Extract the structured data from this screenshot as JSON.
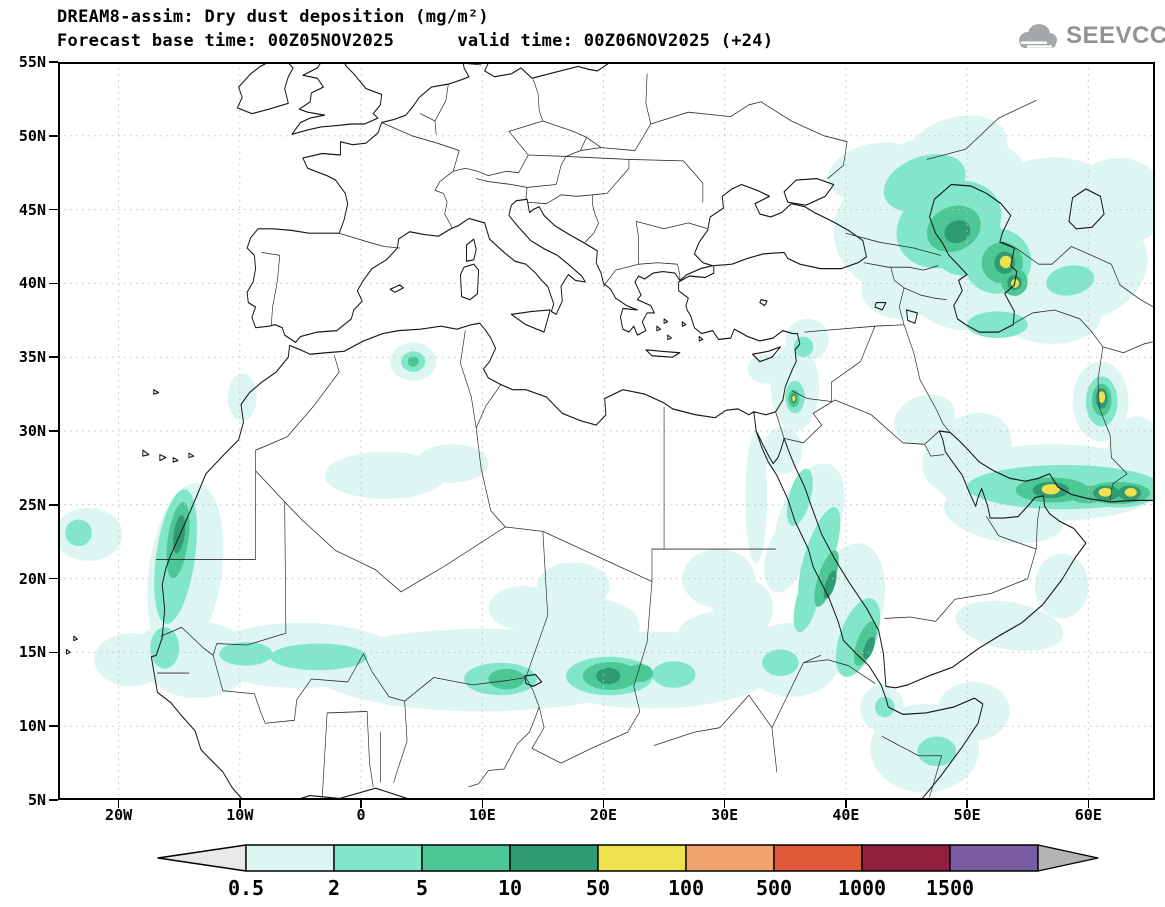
{
  "header": {
    "line1": "DREAM8-assim: Dry dust deposition (mg/m²)",
    "line2": "Forecast base time: 00Z05NOV2025      valid time: 00Z06NOV2025 (+24)",
    "logo_text": "SEEVCCC"
  },
  "map": {
    "lon_min": -25,
    "lon_max": 65.5,
    "lat_min": 5,
    "lat_max": 55,
    "x_ticks": [
      {
        "lon": -20,
        "label": "20W"
      },
      {
        "lon": -10,
        "label": "10W"
      },
      {
        "lon": 0,
        "label": "0"
      },
      {
        "lon": 10,
        "label": "10E"
      },
      {
        "lon": 20,
        "label": "20E"
      },
      {
        "lon": 30,
        "label": "30E"
      },
      {
        "lon": 40,
        "label": "40E"
      },
      {
        "lon": 50,
        "label": "50E"
      },
      {
        "lon": 60,
        "label": "60E"
      }
    ],
    "y_ticks": [
      {
        "lat": 55,
        "label": "55N"
      },
      {
        "lat": 50,
        "label": "50N"
      },
      {
        "lat": 45,
        "label": "45N"
      },
      {
        "lat": 40,
        "label": "40N"
      },
      {
        "lat": 35,
        "label": "35N"
      },
      {
        "lat": 30,
        "label": "30N"
      },
      {
        "lat": 25,
        "label": "25N"
      },
      {
        "lat": 20,
        "label": "20N"
      },
      {
        "lat": 15,
        "label": "15N"
      },
      {
        "lat": 10,
        "label": "10N"
      },
      {
        "lat": 5,
        "label": "5N"
      }
    ]
  },
  "chart_data": {
    "type": "filled-contour-map",
    "title": "DREAM8-assim: Dry dust deposition (mg/m²)",
    "model": "DREAM8-assim",
    "variable": "Dry dust deposition",
    "units": "mg/m²",
    "forecast_base_time": "00Z05NOV2025",
    "valid_time": "00Z06NOV2025",
    "lead_hours": 24,
    "lon_range": [
      -25,
      65.5
    ],
    "lat_range": [
      5,
      55
    ],
    "grid_spacing_deg": {
      "lon": 10,
      "lat": 5
    },
    "levels": [
      0.5,
      2,
      5,
      10,
      50,
      100,
      500,
      1000,
      1500
    ],
    "level_labels": [
      "0.5",
      "2",
      "5",
      "10",
      "50",
      "100",
      "500",
      "1000",
      "1500"
    ],
    "bin_colors": [
      "#ddf6f1",
      "#82e7c8",
      "#4cc795",
      "#2f9b73",
      "#efe24e",
      "#f1a46f",
      "#e05a39",
      "#8f1f3c",
      "#7a5ca3"
    ],
    "arrow_left_color": "#e8e8e8",
    "arrow_right_color": "#b3b3b3",
    "colorbar_position": "bottom",
    "regions_format": [
      "level_mg_m2",
      "lon_deg",
      "lat_deg",
      "rx_deg",
      "ry_deg",
      "rot_deg"
    ],
    "regions": [
      [
        0.5,
        47.5,
        45.5,
        8,
        4.5,
        -15
      ],
      [
        0.5,
        51,
        42,
        7,
        5,
        -30
      ],
      [
        0.5,
        56.5,
        44.5,
        6.5,
        4,
        -10
      ],
      [
        0.5,
        44,
        43.5,
        5,
        4,
        0
      ],
      [
        0.5,
        44.5,
        39.5,
        3.2,
        1.9,
        0
      ],
      [
        0.5,
        59.5,
        41,
        5.5,
        3.5,
        -20
      ],
      [
        0.5,
        62.5,
        45.5,
        4,
        3,
        0
      ],
      [
        0.5,
        49,
        48.8,
        4.5,
        2.4,
        -20
      ],
      [
        0.5,
        42.5,
        47.5,
        4,
        2,
        -10
      ],
      [
        0.5,
        57,
        37.6,
        4,
        1.7,
        0
      ],
      [
        0.5,
        57,
        26.5,
        9.5,
        2.6,
        0
      ],
      [
        0.5,
        50,
        28.5,
        4,
        2.4,
        -35
      ],
      [
        0.5,
        53,
        24.3,
        5,
        1.8,
        10
      ],
      [
        0.5,
        64,
        28,
        2.5,
        3,
        0
      ],
      [
        0.5,
        61,
        32,
        2.3,
        2.7,
        0
      ],
      [
        0.5,
        46.5,
        30.8,
        2.6,
        1.6,
        -20
      ],
      [
        0.5,
        35.8,
        33,
        2,
        3,
        0
      ],
      [
        0.5,
        36.8,
        36.2,
        1.8,
        1.4,
        0
      ],
      [
        0.5,
        33.5,
        34.2,
        1.6,
        1,
        0
      ],
      [
        0.5,
        37,
        24,
        2.5,
        4,
        20
      ],
      [
        0.5,
        40,
        18,
        3,
        4.5,
        15
      ],
      [
        0.5,
        34.8,
        28.7,
        1.6,
        1.6,
        0
      ],
      [
        0.5,
        32.6,
        25.5,
        0.9,
        4.5,
        0
      ],
      [
        0.5,
        35,
        21.5,
        1.6,
        2.5,
        15
      ],
      [
        0.5,
        53.5,
        16.8,
        4.5,
        1.6,
        10
      ],
      [
        0.5,
        57.8,
        19.5,
        2.2,
        2.2,
        0
      ],
      [
        0.5,
        46.5,
        8.5,
        4.5,
        3,
        0
      ],
      [
        0.5,
        50.5,
        11,
        3,
        2,
        0
      ],
      [
        0.5,
        43,
        11.2,
        1.8,
        1.6,
        0
      ],
      [
        0.5,
        10,
        13.8,
        14,
        2.8,
        0
      ],
      [
        0.5,
        24,
        13.8,
        10,
        2.6,
        0
      ],
      [
        0.5,
        -5,
        14.8,
        8,
        2.2,
        0
      ],
      [
        0.5,
        -13.5,
        14.5,
        4.5,
        2.6,
        0
      ],
      [
        0.5,
        -19,
        14.5,
        3,
        1.8,
        0
      ],
      [
        0.5,
        35.5,
        14.5,
        4,
        2.5,
        0
      ],
      [
        0.5,
        18,
        16.8,
        5,
        2,
        0
      ],
      [
        0.5,
        30,
        16,
        4,
        1.8,
        0
      ],
      [
        0.5,
        13.5,
        18,
        3,
        1.5,
        0
      ],
      [
        0.5,
        17.5,
        19.5,
        3,
        1.6,
        0
      ],
      [
        0.5,
        -14.5,
        20.5,
        3,
        6,
        8
      ],
      [
        0.5,
        -16.2,
        14.8,
        2.6,
        2,
        0
      ],
      [
        0.5,
        -22.5,
        23,
        2.8,
        1.8,
        0
      ],
      [
        0.5,
        2,
        27,
        5,
        1.6,
        0
      ],
      [
        0.5,
        7.5,
        27.8,
        3,
        1.3,
        0
      ],
      [
        0.5,
        4.3,
        34.7,
        1.9,
        1.3,
        0
      ],
      [
        0.5,
        -9.8,
        32.3,
        1.2,
        1.6,
        0
      ],
      [
        0.5,
        29.5,
        20,
        3,
        2,
        0
      ],
      [
        0.5,
        31.5,
        18,
        2.5,
        2,
        0
      ],
      [
        2,
        48.5,
        44,
        4.5,
        2.8,
        -25
      ],
      [
        2,
        52.5,
        41.5,
        2.8,
        2.2,
        0
      ],
      [
        2,
        50,
        42.8,
        3,
        2.2,
        -30
      ],
      [
        2,
        46.5,
        46.8,
        3.5,
        1.8,
        -20
      ],
      [
        2,
        52.5,
        37.2,
        2.5,
        0.9,
        0
      ],
      [
        2,
        58.5,
        40.2,
        2,
        1,
        -10
      ],
      [
        2,
        58,
        26.2,
        8,
        1.5,
        0
      ],
      [
        2,
        62.6,
        25.9,
        3,
        1.1,
        0
      ],
      [
        2,
        55.3,
        26.2,
        2.5,
        1.1,
        0
      ],
      [
        2,
        61.1,
        32,
        1.3,
        1.7,
        0
      ],
      [
        2,
        35.8,
        32.3,
        0.8,
        1.1,
        0
      ],
      [
        2,
        36.5,
        35.7,
        0.8,
        0.7,
        0
      ],
      [
        2,
        37.8,
        21.5,
        1.2,
        3.5,
        18
      ],
      [
        2,
        41,
        16,
        1.5,
        2.8,
        20
      ],
      [
        2,
        36.2,
        25.5,
        0.9,
        2,
        15
      ],
      [
        2,
        36.8,
        18.5,
        0.9,
        2.2,
        15
      ],
      [
        2,
        20.5,
        13.4,
        3.6,
        1.3,
        0
      ],
      [
        2,
        11.5,
        13.2,
        3,
        1.1,
        0
      ],
      [
        2,
        -3.5,
        14.7,
        4,
        0.9,
        0
      ],
      [
        2,
        -9.5,
        14.9,
        2.2,
        0.8,
        0
      ],
      [
        2,
        25.8,
        13.5,
        1.8,
        0.9,
        0
      ],
      [
        2,
        -15.3,
        21.5,
        1.6,
        4.6,
        8
      ],
      [
        2,
        -16.2,
        15.3,
        1.2,
        1.4,
        0
      ],
      [
        2,
        4.3,
        34.7,
        1,
        0.7,
        0
      ],
      [
        2,
        -23.3,
        23.1,
        1.1,
        0.9,
        0
      ],
      [
        2,
        43.2,
        11.3,
        0.8,
        0.7,
        0
      ],
      [
        2,
        47.5,
        8.3,
        1.6,
        1,
        0
      ],
      [
        2,
        34.6,
        14.3,
        1.5,
        0.9,
        0
      ],
      [
        5,
        48.9,
        43.7,
        2.3,
        1.5,
        -25
      ],
      [
        5,
        52.9,
        41.4,
        1.7,
        1.4,
        0
      ],
      [
        5,
        53.9,
        40.1,
        1.1,
        0.95,
        0
      ],
      [
        5,
        57,
        26,
        3,
        0.85,
        0
      ],
      [
        5,
        62.4,
        25.8,
        2.7,
        0.75,
        0
      ],
      [
        5,
        59.9,
        25.7,
        1.5,
        0.6,
        0
      ],
      [
        5,
        61.1,
        32.1,
        0.8,
        1.1,
        0
      ],
      [
        5,
        38.4,
        20,
        0.7,
        2,
        18
      ],
      [
        5,
        41.6,
        15.6,
        0.7,
        1.6,
        20
      ],
      [
        5,
        20.6,
        13.4,
        2.3,
        0.95,
        0
      ],
      [
        5,
        12,
        13.2,
        1.5,
        0.7,
        0
      ],
      [
        5,
        -15.1,
        22.6,
        0.85,
        2.6,
        8
      ],
      [
        5,
        35.7,
        32.2,
        0.45,
        0.6,
        0
      ],
      [
        5,
        4.3,
        34.7,
        0.45,
        0.35,
        0
      ],
      [
        5,
        23,
        13.6,
        1.1,
        0.6,
        0
      ],
      [
        10,
        49.2,
        43.5,
        1.1,
        0.75,
        -25
      ],
      [
        10,
        53.1,
        41.4,
        0.85,
        0.75,
        0
      ],
      [
        10,
        53.9,
        40.05,
        0.6,
        0.5,
        0
      ],
      [
        10,
        56.9,
        26,
        1.5,
        0.55,
        0
      ],
      [
        10,
        61.5,
        25.8,
        1.1,
        0.5,
        0
      ],
      [
        10,
        63.4,
        25.8,
        0.95,
        0.5,
        0
      ],
      [
        10,
        61.1,
        32.2,
        0.5,
        0.7,
        0
      ],
      [
        10,
        38.7,
        19.6,
        0.4,
        1,
        18
      ],
      [
        10,
        41.9,
        15.3,
        0.38,
        0.8,
        20
      ],
      [
        10,
        -15,
        23,
        0.45,
        1.3,
        8
      ],
      [
        10,
        35.7,
        32.2,
        0.25,
        0.35,
        0
      ],
      [
        10,
        20.4,
        13.4,
        1,
        0.55,
        0
      ],
      [
        50,
        53.2,
        41.45,
        0.5,
        0.42,
        0
      ],
      [
        50,
        53.95,
        40,
        0.33,
        0.3,
        0
      ],
      [
        50,
        56.9,
        26.05,
        0.75,
        0.35,
        0
      ],
      [
        50,
        61.4,
        25.85,
        0.55,
        0.3,
        0
      ],
      [
        50,
        63.5,
        25.85,
        0.5,
        0.3,
        0
      ],
      [
        50,
        61.1,
        32.3,
        0.28,
        0.4,
        0
      ],
      [
        50,
        35.7,
        32.2,
        0.13,
        0.2,
        0
      ]
    ]
  }
}
